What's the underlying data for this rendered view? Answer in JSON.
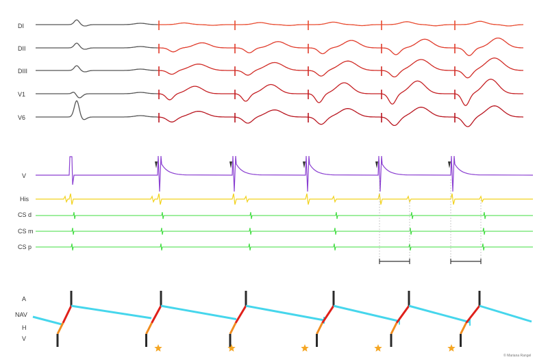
{
  "ecg": {
    "leads": [
      {
        "id": "DI",
        "label": "DI"
      },
      {
        "id": "DII",
        "label": "DII"
      },
      {
        "id": "DIII",
        "label": "DIII"
      },
      {
        "id": "V1",
        "label": "V1"
      },
      {
        "id": "V6",
        "label": "V6"
      }
    ],
    "baseline_color": "#555555",
    "paced_colors": [
      "#e84a2e",
      "#e03a2a",
      "#d02a24",
      "#c41e22",
      "#b8141e"
    ]
  },
  "egm": {
    "channels": [
      {
        "id": "V",
        "label": "V",
        "color": "#8a3fd1"
      },
      {
        "id": "His",
        "label": "His",
        "color": "#f2d21c"
      },
      {
        "id": "CSd",
        "label": "CS d",
        "color": "#3fdc3f"
      },
      {
        "id": "CSm",
        "label": "CS m",
        "color": "#3fdc3f"
      },
      {
        "id": "CSp",
        "label": "CS p",
        "color": "#3fdc3f"
      }
    ],
    "pacing_marker_count": 5,
    "interval_bracket_count": 2
  },
  "ladder": {
    "rows": [
      {
        "id": "A",
        "label": "A"
      },
      {
        "id": "NAV",
        "label": "NAV"
      },
      {
        "id": "H",
        "label": "H"
      },
      {
        "id": "V",
        "label": "V"
      }
    ],
    "colors": {
      "atrial": "#2a2a2a",
      "av_node": "#e0201a",
      "his": "#f08c1e",
      "retrograde": "#46d6ec",
      "pacing_star": "#f5a623"
    },
    "beats": 6,
    "pacing_stars": 5
  },
  "credit": "© Mariana Rangel"
}
